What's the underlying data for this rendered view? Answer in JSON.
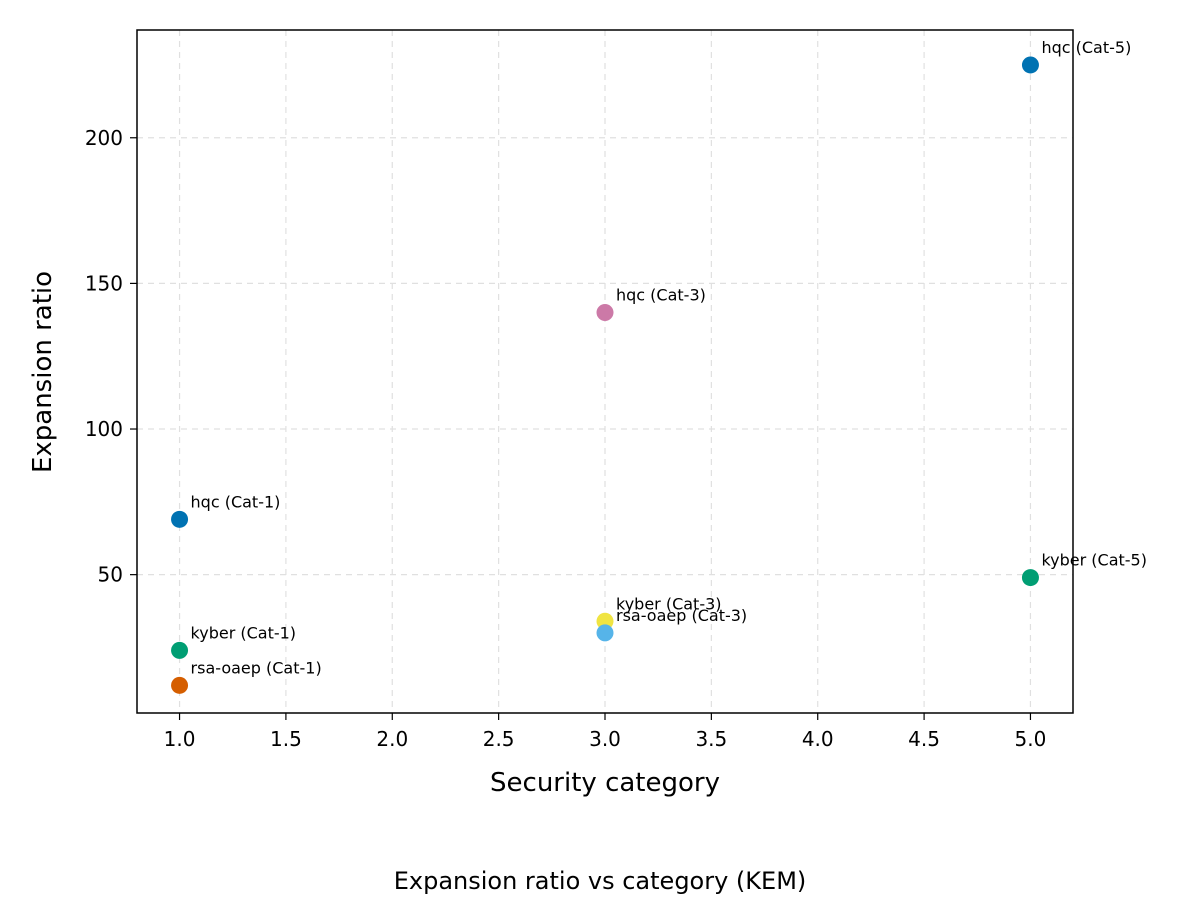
{
  "chart_data": {
    "type": "scatter",
    "caption": "Expansion ratio vs category (KEM)",
    "xlabel": "Security category",
    "ylabel": "Expansion ratio",
    "xlim": [
      0.8,
      5.2
    ],
    "ylim": [
      2.5,
      237
    ],
    "xticks": [
      1.0,
      1.5,
      2.0,
      2.5,
      3.0,
      3.5,
      4.0,
      4.5,
      5.0
    ],
    "xtick_labels": [
      "1.0",
      "1.5",
      "2.0",
      "2.5",
      "3.0",
      "3.5",
      "4.0",
      "4.5",
      "5.0"
    ],
    "yticks": [
      50,
      100,
      150,
      200
    ],
    "ytick_labels": [
      "50",
      "100",
      "150",
      "200"
    ],
    "grid": true,
    "points": [
      {
        "label": "hqc (Cat-1)",
        "x": 1.0,
        "y": 69,
        "color": "#0072B2"
      },
      {
        "label": "kyber (Cat-1)",
        "x": 1.0,
        "y": 24,
        "color": "#009E73"
      },
      {
        "label": "rsa-oaep (Cat-1)",
        "x": 1.0,
        "y": 12,
        "color": "#D55E00"
      },
      {
        "label": "hqc (Cat-3)",
        "x": 3.0,
        "y": 140,
        "color": "#CC79A7"
      },
      {
        "label": "kyber (Cat-3)",
        "x": 3.0,
        "y": 34,
        "color": "#F0E442"
      },
      {
        "label": "rsa-oaep (Cat-3)",
        "x": 3.0,
        "y": 30,
        "color": "#56B4E9"
      },
      {
        "label": "hqc (Cat-5)",
        "x": 5.0,
        "y": 225,
        "color": "#0072B2"
      },
      {
        "label": "kyber (Cat-5)",
        "x": 5.0,
        "y": 49,
        "color": "#009E73"
      }
    ]
  }
}
